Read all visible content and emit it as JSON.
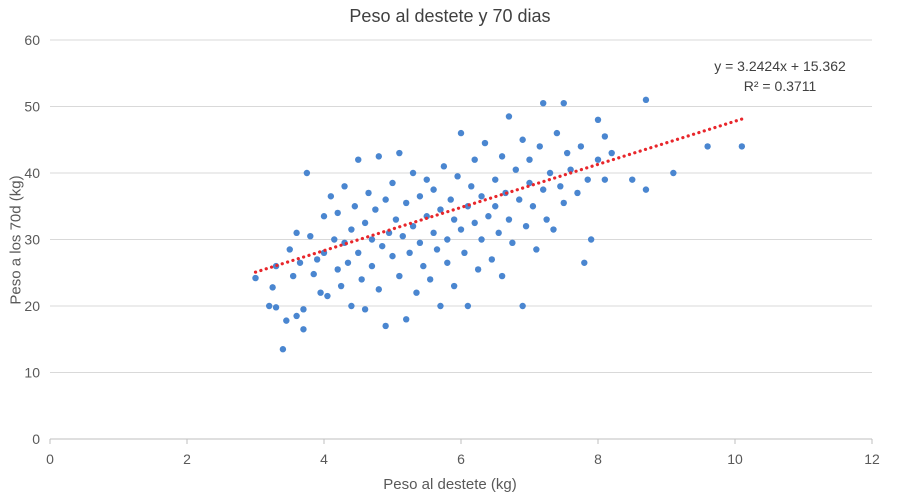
{
  "chart_data": {
    "type": "scatter",
    "title": "Peso al destete y 70 dias",
    "xlabel": "Peso al destete (kg)",
    "ylabel": "Peso a los 70d (kg)",
    "xlim": [
      0,
      12
    ],
    "ylim": [
      0,
      60
    ],
    "xticks": [
      "0",
      "2",
      "4",
      "6",
      "8",
      "10",
      "12"
    ],
    "yticks": [
      "0",
      "10",
      "20",
      "30",
      "40",
      "50",
      "60"
    ],
    "grid": "horizontal",
    "point_color": "#4a86d0",
    "trendline": {
      "slope": 3.2424,
      "intercept": 15.362,
      "x_range": [
        3.0,
        10.1
      ],
      "color": "#e8262b",
      "style": "dotted",
      "equation": "y = 3.2424x + 15.362",
      "r2": "R² = 0.3711"
    },
    "series": [
      {
        "points": [
          [
            3.0,
            24.2
          ],
          [
            3.2,
            20.0
          ],
          [
            3.25,
            22.8
          ],
          [
            3.3,
            26.0
          ],
          [
            3.3,
            19.8
          ],
          [
            3.4,
            13.5
          ],
          [
            3.45,
            17.8
          ],
          [
            3.5,
            28.5
          ],
          [
            3.55,
            24.5
          ],
          [
            3.6,
            31.0
          ],
          [
            3.6,
            18.5
          ],
          [
            3.65,
            26.5
          ],
          [
            3.7,
            16.5
          ],
          [
            3.7,
            19.5
          ],
          [
            3.75,
            40.0
          ],
          [
            3.8,
            30.5
          ],
          [
            3.85,
            24.8
          ],
          [
            3.9,
            27.0
          ],
          [
            3.95,
            22.0
          ],
          [
            4.0,
            28.0
          ],
          [
            4.0,
            33.5
          ],
          [
            4.05,
            21.5
          ],
          [
            4.1,
            36.5
          ],
          [
            4.15,
            30.0
          ],
          [
            4.2,
            25.5
          ],
          [
            4.2,
            34.0
          ],
          [
            4.25,
            23.0
          ],
          [
            4.3,
            29.5
          ],
          [
            4.3,
            38.0
          ],
          [
            4.35,
            26.5
          ],
          [
            4.4,
            31.5
          ],
          [
            4.4,
            20.0
          ],
          [
            4.45,
            35.0
          ],
          [
            4.5,
            28.0
          ],
          [
            4.5,
            42.0
          ],
          [
            4.55,
            24.0
          ],
          [
            4.6,
            32.5
          ],
          [
            4.6,
            19.5
          ],
          [
            4.65,
            37.0
          ],
          [
            4.7,
            30.0
          ],
          [
            4.7,
            26.0
          ],
          [
            4.75,
            34.5
          ],
          [
            4.8,
            22.5
          ],
          [
            4.8,
            42.5
          ],
          [
            4.85,
            29.0
          ],
          [
            4.9,
            17.0
          ],
          [
            4.9,
            36.0
          ],
          [
            4.95,
            31.0
          ],
          [
            5.0,
            27.5
          ],
          [
            5.0,
            38.5
          ],
          [
            5.05,
            33.0
          ],
          [
            5.1,
            24.5
          ],
          [
            5.1,
            43.0
          ],
          [
            5.15,
            30.5
          ],
          [
            5.2,
            18.0
          ],
          [
            5.2,
            35.5
          ],
          [
            5.25,
            28.0
          ],
          [
            5.3,
            40.0
          ],
          [
            5.3,
            32.0
          ],
          [
            5.35,
            22.0
          ],
          [
            5.4,
            36.5
          ],
          [
            5.4,
            29.5
          ],
          [
            5.45,
            26.0
          ],
          [
            5.5,
            33.5
          ],
          [
            5.5,
            39.0
          ],
          [
            5.55,
            24.0
          ],
          [
            5.6,
            31.0
          ],
          [
            5.6,
            37.5
          ],
          [
            5.65,
            28.5
          ],
          [
            5.7,
            34.5
          ],
          [
            5.7,
            20.0
          ],
          [
            5.75,
            41.0
          ],
          [
            5.8,
            30.0
          ],
          [
            5.8,
            26.5
          ],
          [
            5.85,
            36.0
          ],
          [
            5.9,
            33.0
          ],
          [
            5.9,
            23.0
          ],
          [
            5.95,
            39.5
          ],
          [
            6.0,
            31.5
          ],
          [
            6.0,
            46.0
          ],
          [
            6.05,
            28.0
          ],
          [
            6.1,
            35.0
          ],
          [
            6.1,
            20.0
          ],
          [
            6.15,
            38.0
          ],
          [
            6.2,
            32.5
          ],
          [
            6.2,
            42.0
          ],
          [
            6.25,
            25.5
          ],
          [
            6.3,
            36.5
          ],
          [
            6.3,
            30.0
          ],
          [
            6.35,
            44.5
          ],
          [
            6.4,
            33.5
          ],
          [
            6.45,
            27.0
          ],
          [
            6.5,
            39.0
          ],
          [
            6.5,
            35.0
          ],
          [
            6.55,
            31.0
          ],
          [
            6.6,
            42.5
          ],
          [
            6.6,
            24.5
          ],
          [
            6.65,
            37.0
          ],
          [
            6.7,
            48.5
          ],
          [
            6.7,
            33.0
          ],
          [
            6.75,
            29.5
          ],
          [
            6.8,
            40.5
          ],
          [
            6.85,
            36.0
          ],
          [
            6.9,
            20.0
          ],
          [
            6.9,
            45.0
          ],
          [
            6.95,
            32.0
          ],
          [
            7.0,
            38.5
          ],
          [
            7.0,
            42.0
          ],
          [
            7.05,
            35.0
          ],
          [
            7.1,
            28.5
          ],
          [
            7.15,
            44.0
          ],
          [
            7.2,
            50.5
          ],
          [
            7.2,
            37.5
          ],
          [
            7.25,
            33.0
          ],
          [
            7.3,
            40.0
          ],
          [
            7.35,
            31.5
          ],
          [
            7.4,
            46.0
          ],
          [
            7.45,
            38.0
          ],
          [
            7.5,
            50.5
          ],
          [
            7.5,
            35.5
          ],
          [
            7.55,
            43.0
          ],
          [
            7.6,
            40.5
          ],
          [
            7.7,
            37.0
          ],
          [
            7.75,
            44.0
          ],
          [
            7.8,
            26.5
          ],
          [
            7.85,
            39.0
          ],
          [
            7.9,
            30.0
          ],
          [
            8.0,
            48.0
          ],
          [
            8.0,
            42.0
          ],
          [
            8.1,
            45.5
          ],
          [
            8.1,
            39.0
          ],
          [
            8.2,
            43.0
          ],
          [
            8.5,
            39.0
          ],
          [
            8.7,
            37.5
          ],
          [
            8.7,
            51.0
          ],
          [
            9.1,
            40.0
          ],
          [
            9.6,
            44.0
          ],
          [
            10.1,
            44.0
          ]
        ]
      }
    ]
  }
}
